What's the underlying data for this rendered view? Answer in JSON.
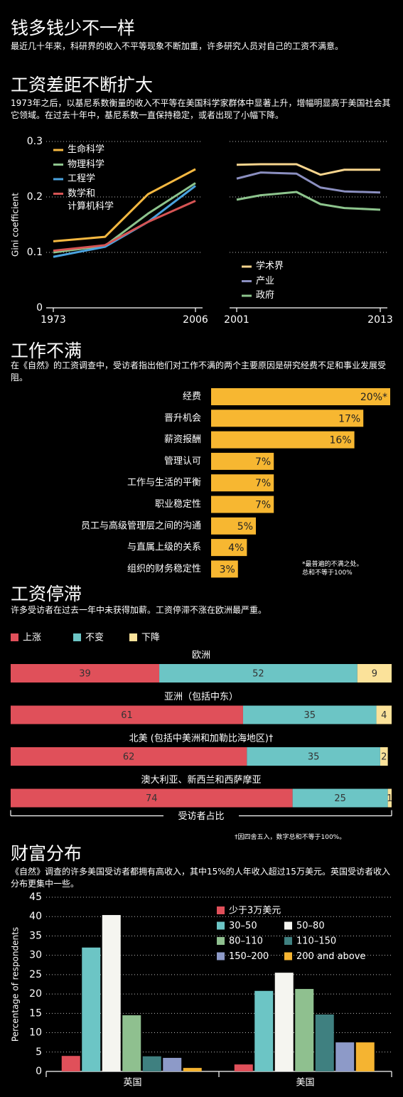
{
  "header": {
    "title": "钱多钱少不一样",
    "subtitle": "最近几十年来，科研界的收入不平等现象不断加重，许多研究人员对自己的工资不满意。"
  },
  "chart_data": [
    {
      "type": "line",
      "title": "工资差距不断扩大",
      "subtitle": "1973年之后，以基尼系数衡量的收入不平等在美国科学家群体中显著上升，增幅明显高于美国社会其它领域。在过去十年中，基尼系数一直保持稳定，或者出现了小幅下降。",
      "y_label": "Gini coefficient",
      "x": [
        1973,
        1985,
        1995,
        2006
      ],
      "xlim": [
        1973,
        2006
      ],
      "xticks": [
        1973,
        2006
      ],
      "ylim": [
        0,
        0.3
      ],
      "yticks": [
        0,
        0.1,
        0.2,
        0.3
      ],
      "grid": true,
      "show_ytick_labels": true,
      "series": [
        {
          "name": "生命科学",
          "color": "#f5b841",
          "values": [
            0.12,
            0.128,
            0.205,
            0.25
          ]
        },
        {
          "name": "物理科学",
          "color": "#8dc48d",
          "values": [
            0.1,
            0.112,
            0.17,
            0.225
          ]
        },
        {
          "name": "工程学",
          "color": "#4aa3df",
          "values": [
            0.092,
            0.11,
            0.155,
            0.22
          ]
        },
        {
          "name": "数学和\n计算机科学",
          "color": "#d65454",
          "values": [
            0.103,
            0.113,
            0.155,
            0.193
          ]
        }
      ]
    },
    {
      "type": "line",
      "x": [
        2001,
        2003,
        2006,
        2008,
        2010,
        2013
      ],
      "xlim": [
        2001,
        2013
      ],
      "xticks": [
        2001,
        2013
      ],
      "ylim": [
        0,
        0.3
      ],
      "yticks": [
        0,
        0.1,
        0.2,
        0.3
      ],
      "grid": true,
      "show_ytick_labels": false,
      "series": [
        {
          "name": "学术界",
          "color": "#f7d58e",
          "values": [
            0.258,
            0.259,
            0.259,
            0.24,
            0.249,
            0.249
          ]
        },
        {
          "name": "产业",
          "color": "#8b8fc0",
          "values": [
            0.233,
            0.244,
            0.242,
            0.217,
            0.21,
            0.208
          ]
        },
        {
          "name": "政府",
          "color": "#8dc48d",
          "values": [
            0.195,
            0.203,
            0.209,
            0.187,
            0.18,
            0.177
          ]
        }
      ]
    },
    {
      "type": "bar",
      "orientation": "horizontal",
      "title": "工作不满",
      "subtitle": "在《自然》的工资调查中，受访者指出他们对工作不满的两个主要原因是研究经费不足和事业发展受阻。",
      "categories": [
        "经费",
        "晋升机会",
        "薪资报酬",
        "管理认可",
        "工作与生活的平衡",
        "职业稳定性",
        "员工与高级管理层之间的沟通",
        "与直属上级的关系",
        "组织的财务稳定性"
      ],
      "values": [
        20,
        17,
        16,
        7,
        7,
        7,
        5,
        4,
        3
      ],
      "value_labels": [
        "20%*",
        "17%",
        "16%",
        "7%",
        "7%",
        "7%",
        "5%",
        "4%",
        "3%"
      ],
      "color": "#f7b731",
      "note": "*最普遍的不满之处。\n总和不等于100%"
    },
    {
      "type": "bar",
      "orientation": "horizontal",
      "stacked": true,
      "title": "工资停滞",
      "subtitle": "许多受访者在过去一年中未获得加薪。工资停滞不涨在欧洲最严重。",
      "categories": [
        "欧洲",
        "亚洲（包括中东）",
        "北美 (包括中美洲和加勒比海地区)†",
        "澳大利亚、新西兰和西萨摩亚"
      ],
      "series": [
        {
          "name": "上涨",
          "color": "#e0505a",
          "values": [
            39,
            61,
            62,
            74
          ]
        },
        {
          "name": "不变",
          "color": "#6cc5c5",
          "values": [
            52,
            35,
            35,
            25
          ]
        },
        {
          "name": "下降",
          "color": "#fbe29a",
          "values": [
            9,
            4,
            2,
            1
          ]
        }
      ],
      "x_label": "受访者占比",
      "note": "†因四舍五入，数字总和不等于100%。"
    },
    {
      "type": "bar",
      "title": "财富分布",
      "subtitle": "《自然》调查的许多美国受访者都拥有高收入，其中15%的人年收入超过15万美元。英国受访者收入分布更集中一些。",
      "y_label": "Percentage of respondents",
      "categories": [
        "英国",
        "美国"
      ],
      "ylim": [
        0,
        45
      ],
      "yticks": [
        0,
        5,
        10,
        15,
        20,
        25,
        30,
        35,
        40,
        45
      ],
      "grid": true,
      "series": [
        {
          "name": "少于3万美元",
          "color": "#e0505a",
          "values": [
            4,
            1.8
          ]
        },
        {
          "name": "30–50",
          "color": "#6cc5c5",
          "values": [
            32,
            20.8
          ]
        },
        {
          "name": "50–80",
          "color": "#f5f5f0",
          "values": [
            40.4,
            25.5
          ]
        },
        {
          "name": "80–110",
          "color": "#8fc08f",
          "values": [
            14.5,
            21.3
          ]
        },
        {
          "name": "110–150",
          "color": "#3f8080",
          "values": [
            3.9,
            14.7
          ]
        },
        {
          "name": "150–200",
          "color": "#8d9ac8",
          "values": [
            3.5,
            7.5
          ]
        },
        {
          "name": "200 and above",
          "color": "#f5b431",
          "values": [
            0.9,
            7.5
          ]
        }
      ]
    }
  ]
}
